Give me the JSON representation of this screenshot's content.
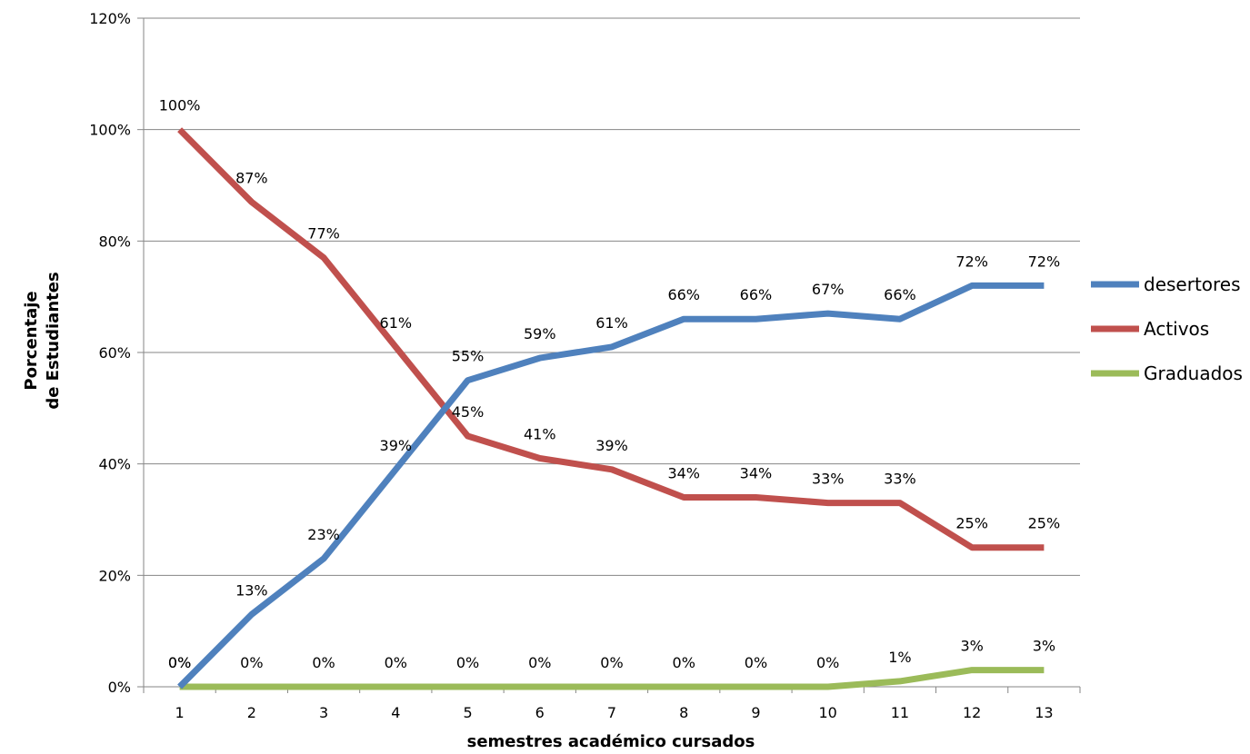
{
  "chart_data": {
    "type": "line",
    "xlabel": "semestres  académico cursados",
    "ylabel_lines": [
      "Porcentaje",
      "de Estudiantes"
    ],
    "categories": [
      "1",
      "2",
      "3",
      "4",
      "5",
      "6",
      "7",
      "8",
      "9",
      "10",
      "11",
      "12",
      "13"
    ],
    "ylim": [
      0,
      120
    ],
    "yticks": [
      "0%",
      "20%",
      "40%",
      "60%",
      "80%",
      "100%",
      "120%"
    ],
    "ytick_values": [
      0,
      20,
      40,
      60,
      80,
      100,
      120
    ],
    "grid": true,
    "legend_position": "right",
    "series": [
      {
        "name": "desertores",
        "color": "#4F81BD",
        "values": [
          0,
          13,
          23,
          39,
          55,
          59,
          61,
          66,
          66,
          67,
          66,
          72,
          72
        ],
        "labels": [
          "0%",
          "13%",
          "23%",
          "39%",
          "55%",
          "59%",
          "61%",
          "66%",
          "66%",
          "67%",
          "66%",
          "72%",
          "72%"
        ]
      },
      {
        "name": "Activos",
        "color": "#C0504D",
        "values": [
          100,
          87,
          77,
          61,
          45,
          41,
          39,
          34,
          34,
          33,
          33,
          25,
          25
        ],
        "labels": [
          "100%",
          "87%",
          "77%",
          "61%",
          "45%",
          "41%",
          "39%",
          "34%",
          "34%",
          "33%",
          "33%",
          "25%",
          "25%"
        ]
      },
      {
        "name": "Graduados",
        "color": "#9BBB59",
        "values": [
          0,
          0,
          0,
          0,
          0,
          0,
          0,
          0,
          0,
          0,
          1,
          3,
          3
        ],
        "labels": [
          "0%",
          "0%",
          "0%",
          "0%",
          "0%",
          "0%",
          "0%",
          "0%",
          "0%",
          "0%",
          "1%",
          "3%",
          "3%"
        ]
      }
    ]
  }
}
